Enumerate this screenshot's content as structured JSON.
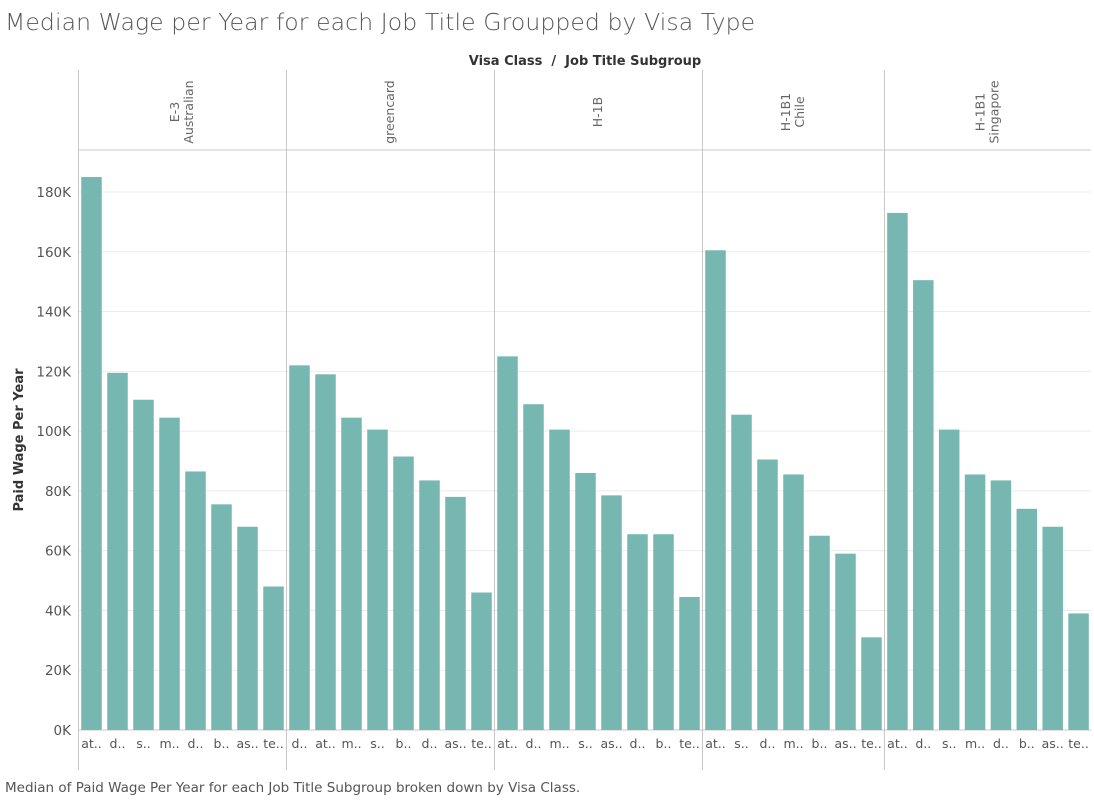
{
  "chart_data": {
    "type": "bar",
    "title": "Median Wage per Year for each Job Title Groupped by Visa Type",
    "column_header": "Visa Class  /  Job Title Subgroup",
    "ylabel": "Paid Wage Per Year",
    "xlabel": "",
    "ylim": [
      0,
      185000
    ],
    "yticks": [
      0,
      20000,
      40000,
      60000,
      80000,
      100000,
      120000,
      140000,
      160000,
      180000
    ],
    "ytick_labels": [
      "0K",
      "20K",
      "40K",
      "60K",
      "80K",
      "100K",
      "120K",
      "140K",
      "160K",
      "180K"
    ],
    "grid": true,
    "bar_color": "#76b7b2",
    "caption": "Median of Paid Wage Per Year for each Job Title Subgroup broken down by Visa Class.",
    "panels": [
      {
        "name_lines": [
          "E-3",
          "Australian"
        ],
        "categories": [
          "at..",
          "d..",
          "s..",
          "m..",
          "d..",
          "b..",
          "as..",
          "te.."
        ],
        "values": [
          185000,
          119500,
          110500,
          104500,
          86500,
          75500,
          68000,
          48000
        ]
      },
      {
        "name_lines": [
          "greencard"
        ],
        "categories": [
          "d..",
          "at..",
          "m..",
          "s..",
          "b..",
          "d..",
          "as..",
          "te.."
        ],
        "values": [
          122000,
          119000,
          104500,
          100500,
          91500,
          83500,
          78000,
          46000
        ]
      },
      {
        "name_lines": [
          "H-1B"
        ],
        "categories": [
          "at..",
          "d..",
          "m..",
          "s..",
          "as..",
          "d..",
          "b..",
          "te.."
        ],
        "values": [
          125000,
          109000,
          100500,
          86000,
          78500,
          65500,
          65500,
          44500
        ]
      },
      {
        "name_lines": [
          "H-1B1",
          "Chile"
        ],
        "categories": [
          "at..",
          "s..",
          "d..",
          "m..",
          "b..",
          "as..",
          "te.."
        ],
        "values": [
          160500,
          105500,
          90500,
          85500,
          65000,
          59000,
          31000
        ]
      },
      {
        "name_lines": [
          "H-1B1",
          "Singapore"
        ],
        "categories": [
          "at..",
          "d..",
          "s..",
          "m..",
          "d..",
          "b..",
          "as..",
          "te.."
        ],
        "values": [
          173000,
          150500,
          100500,
          85500,
          83500,
          74000,
          68000,
          39000
        ]
      }
    ]
  }
}
